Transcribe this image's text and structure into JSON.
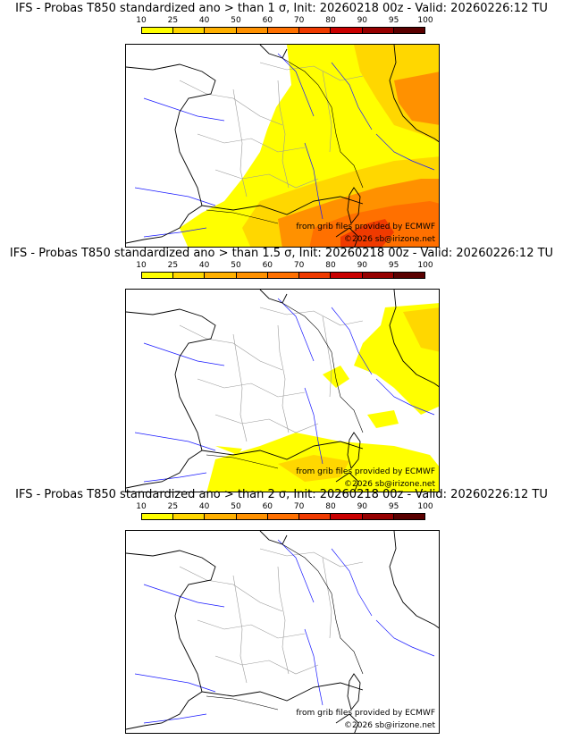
{
  "colors": {
    "bin_colors": [
      "#ffff00",
      "#ffd700",
      "#ffb000",
      "#ff9100",
      "#ff7000",
      "#ef3a00",
      "#c90000",
      "#960000",
      "#5a0000"
    ],
    "coast": "#000000",
    "borders": "#000000",
    "regions": "#9a9a9a",
    "rivers": "#1a1aff"
  },
  "colorbar": {
    "ticks": [
      "10",
      "25",
      "40",
      "50",
      "60",
      "70",
      "80",
      "90",
      "95",
      "100"
    ]
  },
  "panels": [
    {
      "title": "IFS - Probas T850  standardized ano > than 1 σ, Init: 20260218 00z - Valid: 20260226:12 TU",
      "credit_source": "from grib files provided by ECMWF",
      "credit_copyright": "©2026 sb@irizone.net",
      "icon": "probability-map-icon"
    },
    {
      "title": "IFS - Probas T850  standardized ano > than 1.5 σ, Init: 20260218 00z - Valid: 20260226:12 TU",
      "credit_source": "from grib files provided by ECMWF",
      "credit_copyright": "©2026 sb@irizone.net",
      "icon": "probability-map-icon"
    },
    {
      "title": "IFS - Probas T850  standardized ano > than 2 σ, Init: 20260218 00z - Valid: 20260226:12 TU",
      "credit_source": "from grib files provided by ECMWF",
      "credit_copyright": "©2026 sb@irizone.net",
      "icon": "probability-map-icon"
    }
  ]
}
